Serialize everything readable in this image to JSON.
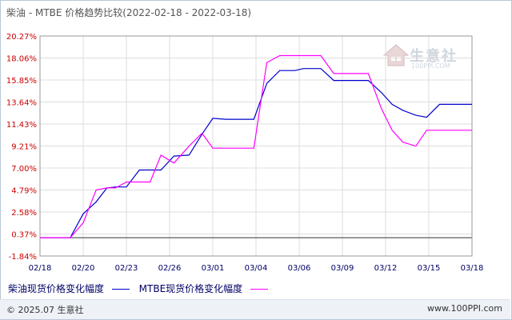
{
  "title": "柴油 - MTBE 价格趋势比较(2022-02-18 - 2022-03-18)",
  "legend": [
    {
      "label": "柴油现货价格变化幅度",
      "color": "#0000cc"
    },
    {
      "label": "MTBE现货价格变化幅度",
      "color": "#ff00ff"
    }
  ],
  "footer": {
    "copyright": "© 2025.07 生意社",
    "brand": "www.100PPI.com"
  },
  "watermark": {
    "name": "生意社",
    "url": "100PPI.COM"
  },
  "colors": {
    "y_tick_text": "#cc0000",
    "x_tick_text": "#000066",
    "grid": "#dddddd"
  },
  "chart_data": {
    "type": "line",
    "title": "柴油 - MTBE 价格趋势比较(2022-02-18 - 2022-03-18)",
    "xlabel": "",
    "ylabel": "",
    "ylim": [
      -1.84,
      20.27
    ],
    "yticks": [
      "20.27%",
      "18.06%",
      "15.85%",
      "13.64%",
      "11.43%",
      "9.21%",
      "7.00%",
      "4.79%",
      "2.58%",
      "0.37%",
      "-1.84%"
    ],
    "ytick_values": [
      20.27,
      18.06,
      15.85,
      13.64,
      11.43,
      9.21,
      7.0,
      4.79,
      2.58,
      0.37,
      -1.84
    ],
    "xticks": [
      "02/18",
      "02/20",
      "02/23",
      "02/26",
      "03/01",
      "03/04",
      "03/06",
      "03/09",
      "03/12",
      "03/15",
      "03/18"
    ],
    "grid": true,
    "series": [
      {
        "name": "柴油现货价格变化幅度",
        "color": "#0000cc",
        "x": [
          0,
          0.7,
          1.0,
          1.3,
          1.55,
          1.75,
          2.0,
          2.3,
          2.55,
          2.8,
          3.1,
          3.45,
          3.75,
          4.0,
          4.3,
          4.6,
          4.95,
          5.25,
          5.55,
          5.9,
          6.1,
          6.5,
          6.8,
          7.05,
          7.3,
          7.6,
          7.9,
          8.15,
          8.4,
          8.7,
          8.95,
          9.25,
          9.55,
          9.85,
          10.0
        ],
        "y": [
          0.0,
          0.0,
          2.4,
          3.6,
          5.0,
          5.1,
          5.1,
          6.8,
          6.8,
          6.8,
          8.2,
          8.3,
          10.4,
          12.0,
          11.9,
          11.9,
          11.9,
          15.5,
          16.8,
          16.8,
          17.0,
          17.0,
          15.8,
          15.8,
          15.8,
          15.8,
          14.6,
          13.4,
          12.8,
          12.3,
          12.1,
          13.4,
          13.4,
          13.4,
          13.4
        ]
      },
      {
        "name": "MTBE现货价格变化幅度",
        "color": "#ff00ff",
        "x": [
          0,
          0.7,
          1.0,
          1.3,
          1.55,
          1.75,
          2.0,
          2.3,
          2.55,
          2.8,
          3.1,
          3.45,
          3.75,
          4.0,
          4.3,
          4.6,
          4.95,
          5.25,
          5.55,
          5.9,
          6.1,
          6.5,
          6.8,
          7.05,
          7.3,
          7.6,
          7.9,
          8.15,
          8.4,
          8.7,
          8.95,
          9.25,
          9.55,
          9.85,
          10.0
        ],
        "y": [
          0.0,
          0.0,
          1.5,
          4.8,
          5.0,
          5.0,
          5.6,
          5.6,
          5.6,
          8.3,
          7.5,
          9.2,
          10.5,
          9.0,
          9.0,
          9.0,
          9.0,
          17.6,
          18.3,
          18.3,
          18.3,
          18.3,
          16.5,
          16.5,
          16.5,
          16.5,
          13.0,
          10.8,
          9.6,
          9.2,
          10.8,
          10.8,
          10.8,
          10.8,
          10.8
        ]
      }
    ]
  }
}
